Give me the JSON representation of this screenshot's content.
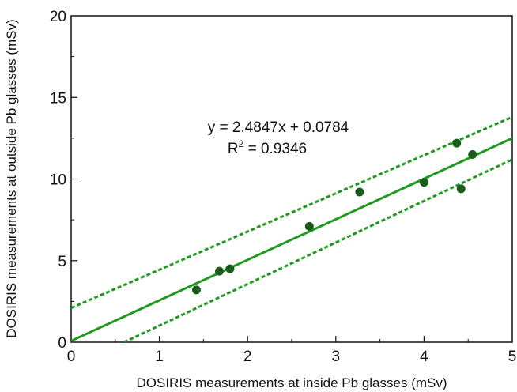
{
  "chart_data": {
    "type": "scatter",
    "xlabel": "DOSIRIS measurements at inside Pb glasses (mSv)",
    "ylabel": "DOSIRIS measurements at outside Pb glasses (mSv)",
    "xlim": [
      0,
      5
    ],
    "ylim": [
      0,
      20
    ],
    "x_ticks": [
      "0",
      "1",
      "2",
      "3",
      "4",
      "5"
    ],
    "y_ticks": [
      "0",
      "5",
      "10",
      "15",
      "20"
    ],
    "grid": false,
    "series": [
      {
        "points": [
          {
            "x": 1.42,
            "y": 3.2
          },
          {
            "x": 1.68,
            "y": 4.35
          },
          {
            "x": 1.8,
            "y": 4.5
          },
          {
            "x": 2.7,
            "y": 7.1
          },
          {
            "x": 3.27,
            "y": 9.2
          },
          {
            "x": 4.0,
            "y": 9.8
          },
          {
            "x": 4.37,
            "y": 12.2
          },
          {
            "x": 4.42,
            "y": 9.4
          },
          {
            "x": 4.55,
            "y": 11.5
          }
        ]
      }
    ],
    "fit": {
      "slope": 2.4847,
      "intercept": 0.0784,
      "equation_text": "y = 2.4847x + 0.0784",
      "r2_prefix": "R",
      "r2_sup": "2",
      "r2_suffix": " = 0.9346"
    },
    "confidence_band": {
      "upper": [
        [
          0,
          2.1
        ],
        [
          5,
          13.8
        ]
      ],
      "lower": [
        [
          0.6,
          0
        ],
        [
          5,
          11.2
        ]
      ]
    },
    "colors": {
      "points": "#1a5c1a",
      "fit_line": "#1f9a1f",
      "band": "#1f9a1f",
      "axis": "#111111"
    }
  }
}
